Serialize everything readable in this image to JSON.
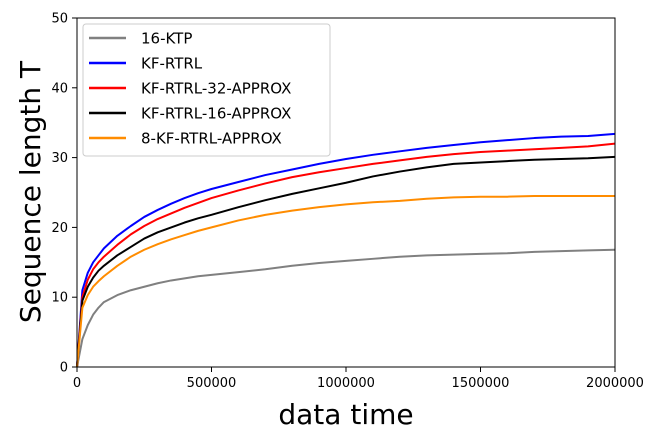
{
  "chart_data": {
    "type": "line",
    "title": "",
    "xlabel": "data time",
    "ylabel": "Sequence length T",
    "xlim": [
      0,
      2000000
    ],
    "ylim": [
      0,
      50
    ],
    "xticks": [
      {
        "value": 0,
        "label": "0"
      },
      {
        "value": 500000,
        "label": "500000"
      },
      {
        "value": 1000000,
        "label": "1000000"
      },
      {
        "value": 1500000,
        "label": "1500000"
      },
      {
        "value": 2000000,
        "label": "2000000"
      }
    ],
    "yticks": [
      {
        "value": 0,
        "label": "0"
      },
      {
        "value": 10,
        "label": "10"
      },
      {
        "value": 20,
        "label": "20"
      },
      {
        "value": 30,
        "label": "30"
      },
      {
        "value": 40,
        "label": "40"
      },
      {
        "value": 50,
        "label": "50"
      }
    ],
    "grid": false,
    "legend_position": "top-left",
    "series": [
      {
        "name": "16-KTP",
        "color": "#808080",
        "x": [
          0,
          20000,
          40000,
          60000,
          80000,
          100000,
          150000,
          200000,
          250000,
          300000,
          350000,
          400000,
          450000,
          500000,
          600000,
          700000,
          800000,
          900000,
          1000000,
          1100000,
          1200000,
          1300000,
          1400000,
          1500000,
          1600000,
          1700000,
          1800000,
          1900000,
          2000000
        ],
        "values": [
          0,
          4,
          6,
          7.5,
          8.5,
          9.3,
          10.3,
          11,
          11.5,
          12,
          12.4,
          12.7,
          13,
          13.2,
          13.6,
          14,
          14.5,
          14.9,
          15.2,
          15.5,
          15.8,
          16,
          16.1,
          16.2,
          16.3,
          16.5,
          16.6,
          16.7,
          16.8
        ]
      },
      {
        "name": "KF-RTRL",
        "color": "#0000ff",
        "x": [
          0,
          20000,
          40000,
          60000,
          80000,
          100000,
          150000,
          200000,
          250000,
          300000,
          350000,
          400000,
          450000,
          500000,
          600000,
          700000,
          800000,
          900000,
          1000000,
          1100000,
          1200000,
          1300000,
          1400000,
          1500000,
          1600000,
          1700000,
          1800000,
          1900000,
          2000000
        ],
        "values": [
          0,
          11,
          13.5,
          15,
          16,
          17,
          18.8,
          20.2,
          21.5,
          22.5,
          23.4,
          24.2,
          24.9,
          25.5,
          26.5,
          27.5,
          28.3,
          29.1,
          29.8,
          30.4,
          30.9,
          31.4,
          31.8,
          32.2,
          32.5,
          32.8,
          33,
          33.1,
          33.4
        ]
      },
      {
        "name": "KF-RTRL-32-APPROX",
        "color": "#ff0000",
        "x": [
          0,
          20000,
          40000,
          60000,
          80000,
          100000,
          150000,
          200000,
          250000,
          300000,
          350000,
          400000,
          450000,
          500000,
          600000,
          700000,
          800000,
          900000,
          1000000,
          1100000,
          1200000,
          1300000,
          1400000,
          1500000,
          1600000,
          1700000,
          1800000,
          1900000,
          2000000
        ],
        "values": [
          0,
          10,
          12.5,
          14,
          15,
          15.8,
          17.5,
          19,
          20.2,
          21.2,
          22,
          22.8,
          23.5,
          24.2,
          25.3,
          26.3,
          27.2,
          27.9,
          28.5,
          29.1,
          29.6,
          30.1,
          30.5,
          30.8,
          31,
          31.2,
          31.4,
          31.6,
          32
        ]
      },
      {
        "name": "KF-RTRL-16-APPROX",
        "color": "#000000",
        "x": [
          0,
          20000,
          40000,
          60000,
          80000,
          100000,
          150000,
          200000,
          250000,
          300000,
          350000,
          400000,
          450000,
          500000,
          600000,
          700000,
          800000,
          900000,
          1000000,
          1100000,
          1200000,
          1300000,
          1400000,
          1500000,
          1600000,
          1700000,
          1800000,
          1900000,
          2000000
        ],
        "values": [
          0,
          9.5,
          11.5,
          12.8,
          13.8,
          14.5,
          16,
          17.2,
          18.4,
          19.3,
          20,
          20.7,
          21.3,
          21.8,
          22.9,
          23.9,
          24.8,
          25.6,
          26.4,
          27.3,
          28,
          28.6,
          29.1,
          29.3,
          29.5,
          29.7,
          29.8,
          29.9,
          30.1
        ]
      },
      {
        "name": "8-KF-RTRL-APPROX",
        "color": "#ff8c00",
        "x": [
          0,
          20000,
          40000,
          60000,
          80000,
          100000,
          150000,
          200000,
          250000,
          300000,
          350000,
          400000,
          450000,
          500000,
          600000,
          700000,
          800000,
          900000,
          1000000,
          1100000,
          1200000,
          1300000,
          1400000,
          1500000,
          1600000,
          1700000,
          1800000,
          1900000,
          2000000
        ],
        "values": [
          0,
          8.5,
          10.3,
          11.5,
          12.3,
          13,
          14.5,
          15.8,
          16.8,
          17.6,
          18.3,
          18.9,
          19.5,
          20,
          21,
          21.8,
          22.4,
          22.9,
          23.3,
          23.6,
          23.8,
          24.1,
          24.3,
          24.4,
          24.4,
          24.5,
          24.5,
          24.5,
          24.5
        ]
      }
    ]
  }
}
